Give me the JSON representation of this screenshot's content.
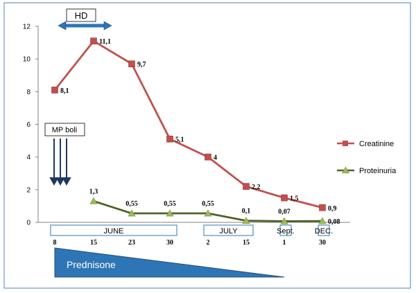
{
  "chart_data": {
    "type": "line",
    "title": "",
    "xlabel": "",
    "ylabel": "",
    "ylim": [
      0,
      12
    ],
    "yticks": [
      0,
      2,
      4,
      6,
      8,
      10,
      12
    ],
    "x": [
      "8",
      "15",
      "23",
      "30",
      "2",
      "15",
      "1",
      "30"
    ],
    "series": [
      {
        "name": "Creatinine",
        "color": "#c0504d",
        "marker": "square",
        "values": [
          8.1,
          11.1,
          9.7,
          5.1,
          4,
          2.2,
          1.5,
          0.9
        ],
        "labels": [
          "8,1",
          "11,1",
          "9,7",
          "5,1",
          "4",
          "2,2",
          "1,5",
          "0,9"
        ]
      },
      {
        "name": "Proteinuria",
        "color": "#4f6228",
        "marker": "triangle",
        "values": [
          null,
          1.3,
          0.55,
          0.55,
          0.55,
          0.1,
          0.07,
          0.08
        ],
        "labels": [
          null,
          "1,3",
          "0,55",
          "0,55",
          "0,55",
          "0,1",
          "0,07",
          "0,08"
        ]
      }
    ],
    "months": [
      {
        "label": "JUNE",
        "from": 0,
        "to": 3
      },
      {
        "label": "JULY",
        "from": 4,
        "to": 5
      },
      {
        "label": "Sept.",
        "from": 6,
        "to": 6
      },
      {
        "label": "DEC.",
        "from": 7,
        "to": 7
      }
    ],
    "legend_position": "right",
    "annotations": {
      "hd_label": "HD",
      "mp_label": "MP boli",
      "prednisone_label": "Prednisone"
    },
    "colors": {
      "arrow_blue": "#2e75b6",
      "prednisone_fill": "#2e75b6",
      "frame": "#4f81bd"
    }
  }
}
